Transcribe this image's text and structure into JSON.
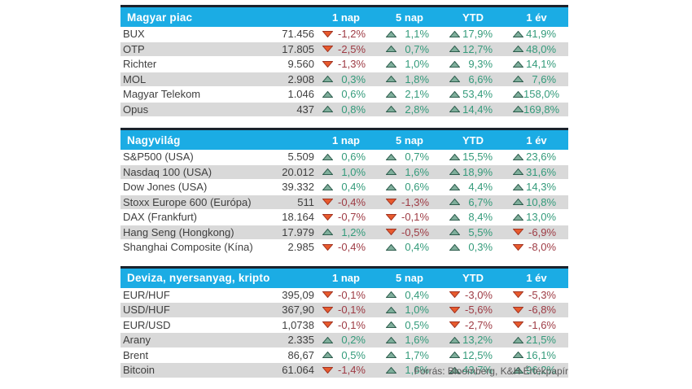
{
  "colors": {
    "header_bg": "#1BACE4",
    "header_top_border": "#1A222C",
    "row_alt_bg": "#D9D9D9",
    "row_text": "#3F3F3F",
    "positive_text": "#349B7B",
    "negative_text": "#9E3B44",
    "triangle_up_fill": "#7FAE9B",
    "triangle_up_stroke": "#2E5E4E",
    "triangle_down_fill": "#E85A2D",
    "triangle_down_stroke": "#A33523",
    "source_text": "#595959"
  },
  "columns": [
    "1 nap",
    "5 nap",
    "YTD",
    "1 év"
  ],
  "tables": [
    {
      "title": "Magyar piac",
      "rows": [
        {
          "name": "BUX",
          "value": "71.456",
          "changes": [
            "-1,2%",
            "1,1%",
            "17,9%",
            "41,9%"
          ]
        },
        {
          "name": "OTP",
          "value": "17.805",
          "changes": [
            "-2,5%",
            "0,7%",
            "12,7%",
            "48,0%"
          ]
        },
        {
          "name": "Richter",
          "value": "9.560",
          "changes": [
            "-1,3%",
            "1,0%",
            "9,3%",
            "14,1%"
          ]
        },
        {
          "name": "MOL",
          "value": "2.908",
          "changes": [
            "0,3%",
            "1,8%",
            "6,6%",
            "7,6%"
          ]
        },
        {
          "name": "Magyar Telekom",
          "value": "1.046",
          "changes": [
            "0,6%",
            "2,1%",
            "53,4%",
            "158,0%"
          ]
        },
        {
          "name": "Opus",
          "value": "437",
          "changes": [
            "0,8%",
            "2,8%",
            "14,4%",
            "169,8%"
          ]
        }
      ]
    },
    {
      "title": "Nagyvilág",
      "rows": [
        {
          "name": "S&P500 (USA)",
          "value": "5.509",
          "changes": [
            "0,6%",
            "0,7%",
            "15,5%",
            "23,6%"
          ]
        },
        {
          "name": "Nasdaq 100 (USA)",
          "value": "20.012",
          "changes": [
            "1,0%",
            "1,6%",
            "18,9%",
            "31,6%"
          ]
        },
        {
          "name": "Dow Jones (USA)",
          "value": "39.332",
          "changes": [
            "0,4%",
            "0,6%",
            "4,4%",
            "14,3%"
          ]
        },
        {
          "name": "Stoxx Europe 600 (Európa)",
          "value": "511",
          "changes": [
            "-0,4%",
            "-1,3%",
            "6,7%",
            "10,8%"
          ]
        },
        {
          "name": "DAX (Frankfurt)",
          "value": "18.164",
          "changes": [
            "-0,7%",
            "-0,1%",
            "8,4%",
            "13,0%"
          ]
        },
        {
          "name": "Hang Seng (Hongkong)",
          "value": "17.979",
          "changes": [
            "1,2%",
            "-0,5%",
            "5,5%",
            "-6,9%"
          ]
        },
        {
          "name": "Shanghai Composite (Kína)",
          "value": "2.985",
          "changes": [
            "-0,4%",
            "0,4%",
            "0,3%",
            "-8,0%"
          ]
        }
      ]
    },
    {
      "title": "Deviza, nyersanyag, kripto",
      "rows": [
        {
          "name": "EUR/HUF",
          "value": "395,09",
          "changes": [
            "-0,1%",
            "0,4%",
            "-3,0%",
            "-5,3%"
          ]
        },
        {
          "name": "USD/HUF",
          "value": "367,90",
          "changes": [
            "-0,1%",
            "1,0%",
            "-5,6%",
            "-6,8%"
          ]
        },
        {
          "name": "EUR/USD",
          "value": "1,0738",
          "changes": [
            "-0,1%",
            "0,5%",
            "-2,7%",
            "-1,6%"
          ]
        },
        {
          "name": "Arany",
          "value": "2.335",
          "changes": [
            "0,2%",
            "1,6%",
            "13,2%",
            "21,5%"
          ]
        },
        {
          "name": "Brent",
          "value": "86,67",
          "changes": [
            "0,5%",
            "1,7%",
            "12,5%",
            "16,1%"
          ]
        },
        {
          "name": "Bitcoin",
          "value": "61.064",
          "changes": [
            "-1,4%",
            "1,6%",
            "43,7%",
            "96,2%"
          ]
        }
      ]
    }
  ],
  "footer": {
    "source": "Forrás: Bloomberg, K&H Értékpapír"
  }
}
